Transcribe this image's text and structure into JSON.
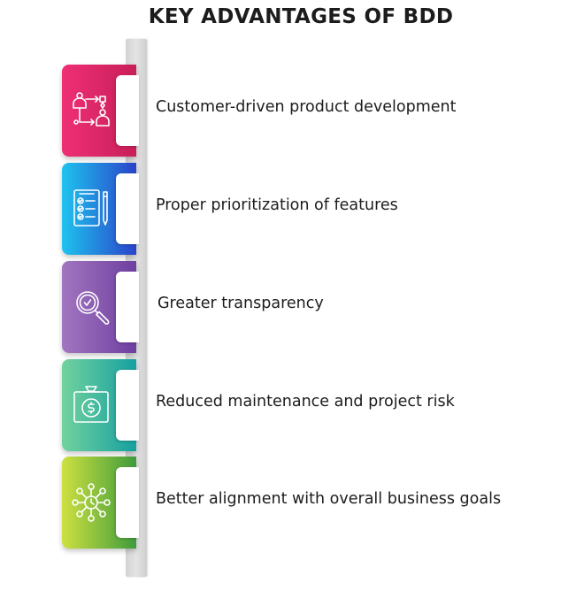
{
  "title": "KEY ADVANTAGES OF BDD",
  "items": [
    {
      "label": "Customer-driven product development",
      "icon": "workflow-people-icon",
      "color": "#e32a6b"
    },
    {
      "label": "Proper prioritization of features",
      "icon": "checklist-icon",
      "color": "#1e7fe0"
    },
    {
      "label": "Greater transparency",
      "icon": "magnifier-check-icon",
      "color": "#8a5cb3"
    },
    {
      "label": "Reduced maintenance and project risk",
      "icon": "money-bag-icon",
      "color": "#3cbfa0"
    },
    {
      "label": "Better alignment with overall business goals",
      "icon": "network-hub-icon",
      "color": "#96c63c"
    }
  ]
}
